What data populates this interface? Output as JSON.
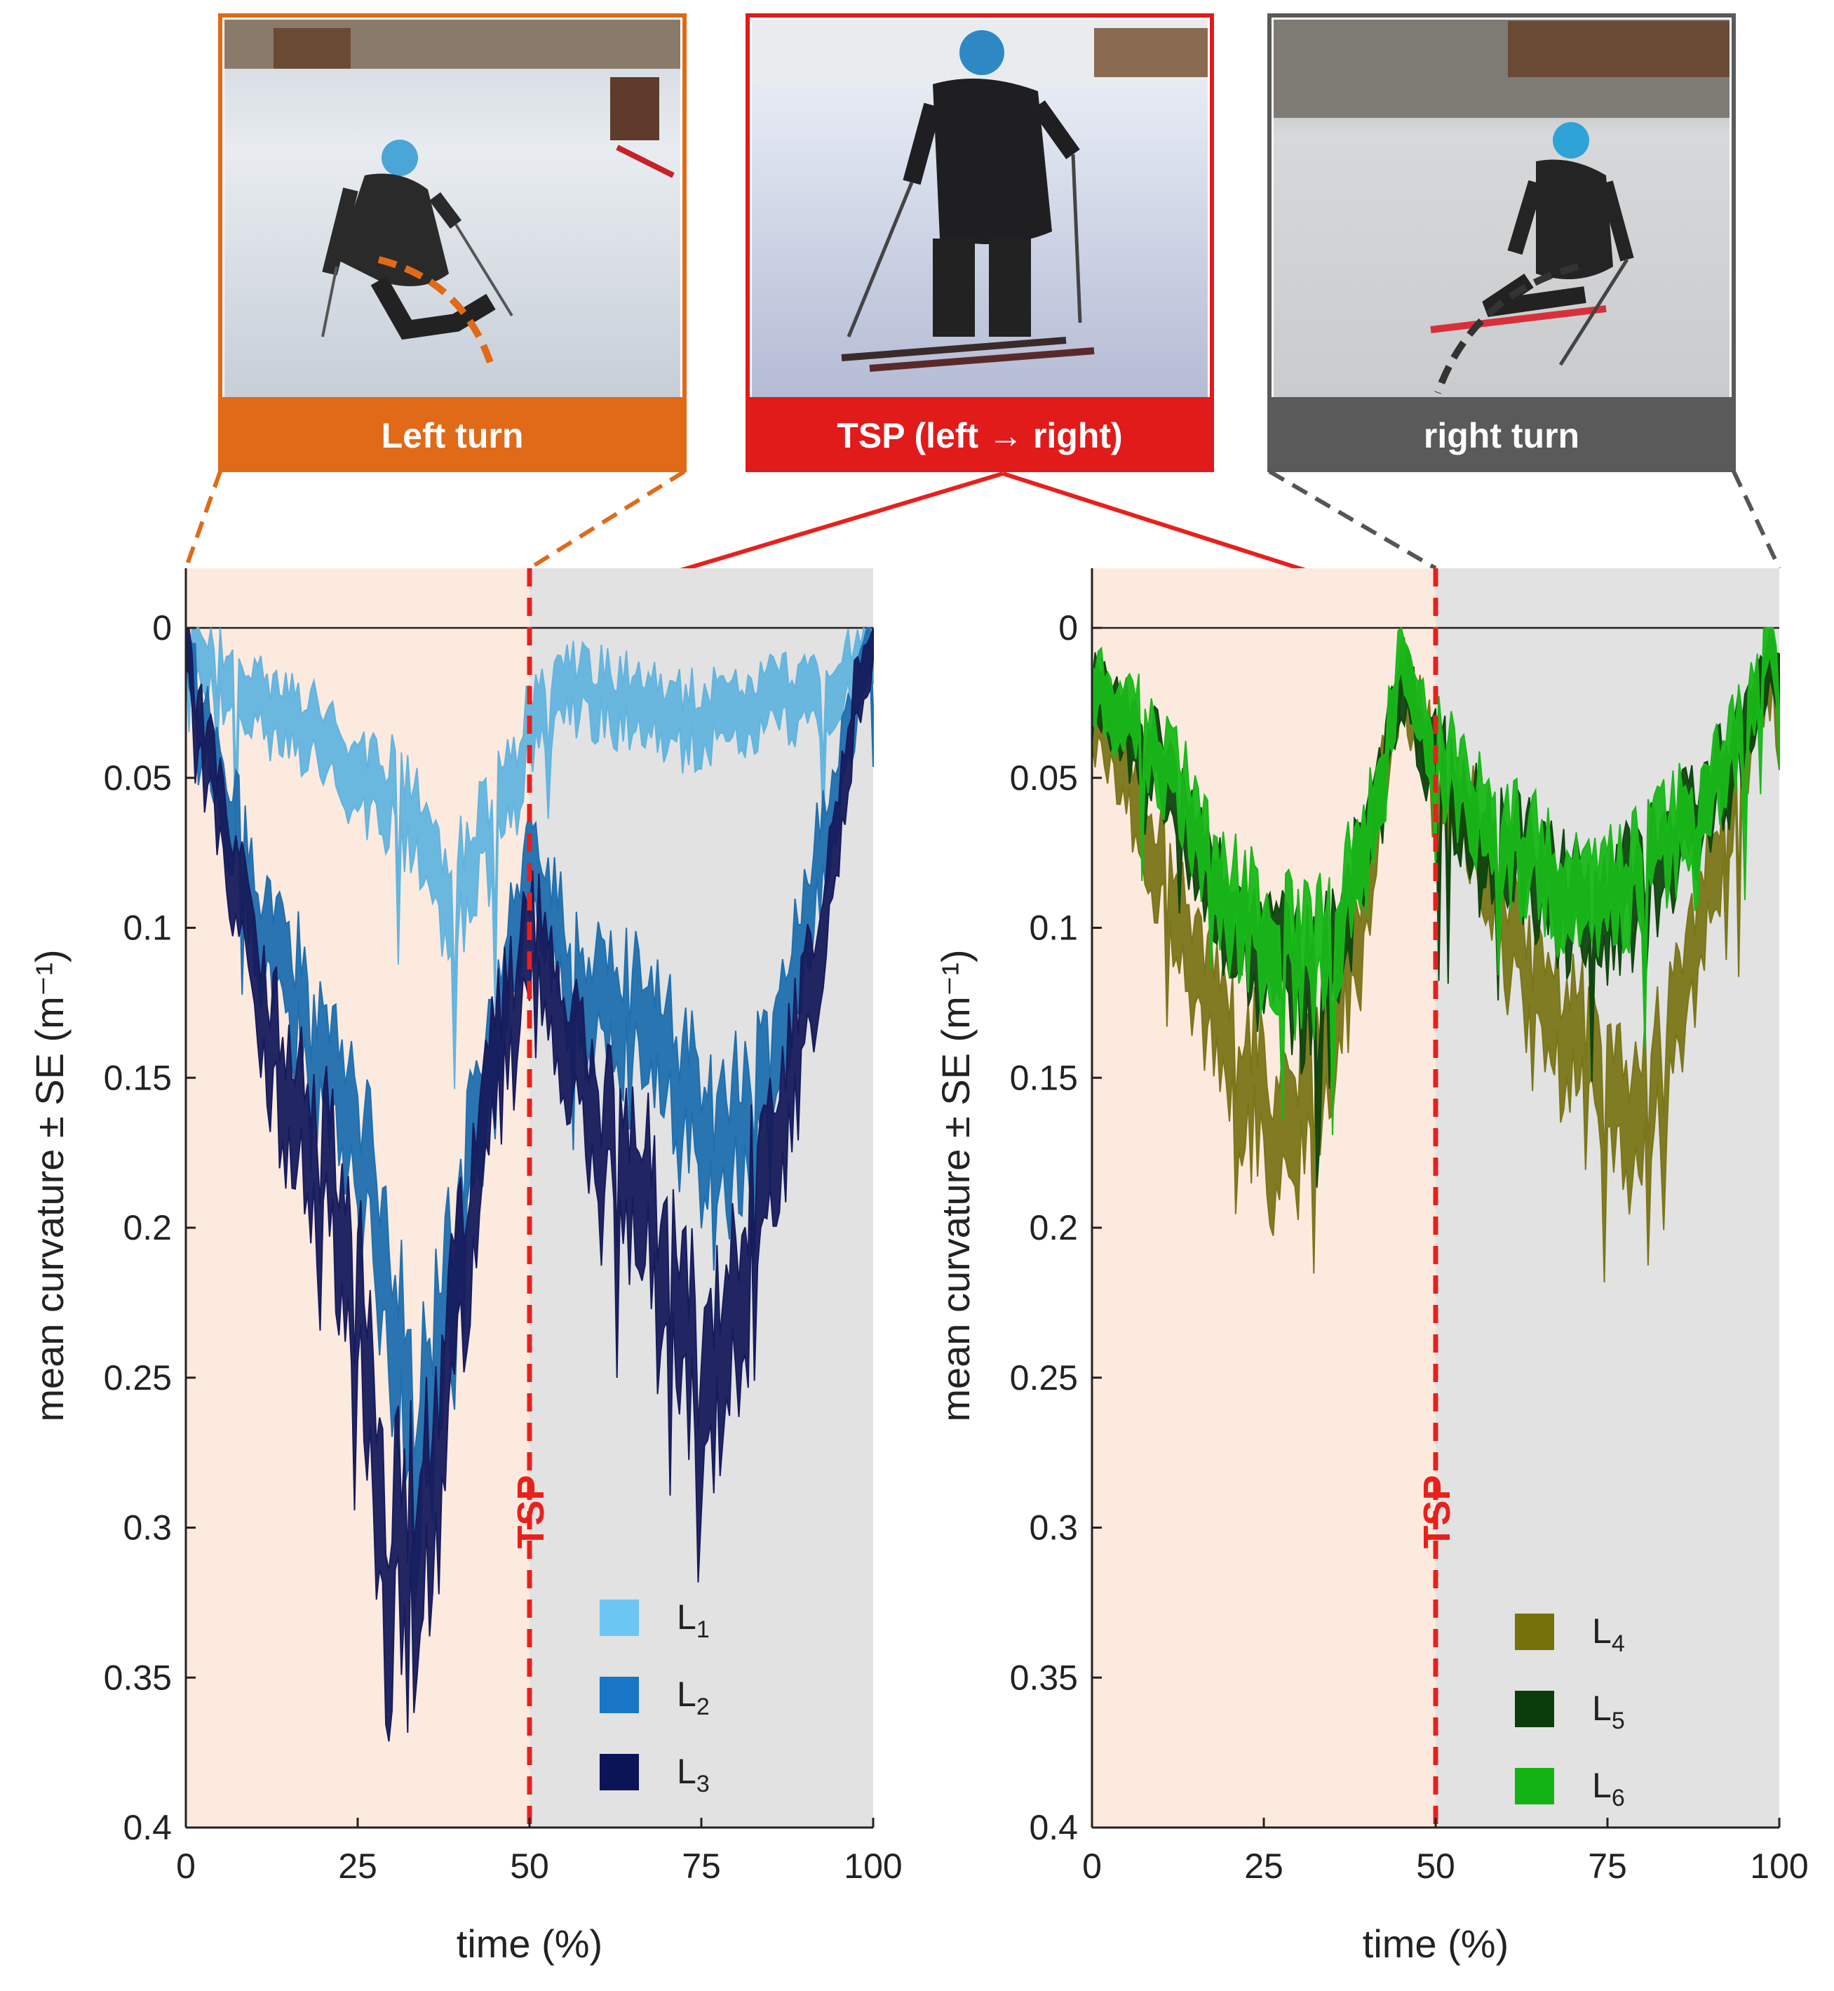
{
  "panels": [
    {
      "caption": "Left turn",
      "border": "#e06a18",
      "bar": "#e06a18"
    },
    {
      "caption": "TSP (left → right)",
      "border": "#e11a1a",
      "bar": "#e11a1a"
    },
    {
      "caption": "right turn",
      "border": "#5a5a5a",
      "bar": "#5a5a5a"
    }
  ],
  "colors": {
    "left_phase_bg": "#fdeadf",
    "right_phase_bg": "#e2e2e2",
    "tsp": "#e8201c",
    "connector_left": "#e06a18",
    "connector_right": "#555555"
  },
  "icons": [
    "skier-photo-left-turn",
    "skier-photo-tsp",
    "skier-photo-right-turn"
  ],
  "chart_data": [
    {
      "type": "area",
      "xlabel": "time (%)",
      "ylabel": "mean curvature ± SE (m⁻¹)",
      "xlim": [
        0,
        100
      ],
      "ylim": [
        0,
        0.4
      ],
      "y_inverted": true,
      "xticks": [
        "0",
        "25",
        "50",
        "75",
        "100"
      ],
      "yticks": [
        "0",
        "0.05",
        "0.1",
        "0.15",
        "0.2",
        "0.25",
        "0.3",
        "0.35",
        "0.4"
      ],
      "tsp_x": 50,
      "tsp_label": "TSP",
      "legend_position": "bottom-right",
      "series": [
        {
          "name": "L",
          "sub": "1",
          "color": "#6cc6f4",
          "band_color": "#62b4de",
          "knots": [
            [
              0,
              0.003
            ],
            [
              3,
              0.01
            ],
            [
              6,
              0.018
            ],
            [
              10,
              0.025
            ],
            [
              15,
              0.03
            ],
            [
              20,
              0.038
            ],
            [
              25,
              0.047
            ],
            [
              30,
              0.056
            ],
            [
              33,
              0.065
            ],
            [
              36,
              0.075
            ],
            [
              38,
              0.09
            ],
            [
              40,
              0.085
            ],
            [
              44,
              0.07
            ],
            [
              48,
              0.05
            ],
            [
              50,
              0.028
            ],
            [
              53,
              0.024
            ],
            [
              56,
              0.02
            ],
            [
              60,
              0.022
            ],
            [
              65,
              0.025
            ],
            [
              70,
              0.03
            ],
            [
              75,
              0.03
            ],
            [
              80,
              0.03
            ],
            [
              85,
              0.025
            ],
            [
              90,
              0.022
            ],
            [
              95,
              0.018
            ],
            [
              98,
              0.012
            ],
            [
              100,
              0.006
            ]
          ]
        },
        {
          "name": "L",
          "sub": "2",
          "color": "#1976c6",
          "band_color": "#1f6fae",
          "knots": [
            [
              0,
              0.003
            ],
            [
              2,
              0.025
            ],
            [
              4,
              0.045
            ],
            [
              6,
              0.06
            ],
            [
              8,
              0.07
            ],
            [
              10,
              0.09
            ],
            [
              12,
              0.11
            ],
            [
              15,
              0.12
            ],
            [
              18,
              0.13
            ],
            [
              20,
              0.145
            ],
            [
              23,
              0.16
            ],
            [
              26,
              0.18
            ],
            [
              29,
              0.215
            ],
            [
              31,
              0.245
            ],
            [
              33,
              0.27
            ],
            [
              35,
              0.26
            ],
            [
              38,
              0.23
            ],
            [
              41,
              0.19
            ],
            [
              44,
              0.15
            ],
            [
              47,
              0.11
            ],
            [
              50,
              0.08
            ],
            [
              52,
              0.09
            ],
            [
              55,
              0.11
            ],
            [
              58,
              0.12
            ],
            [
              62,
              0.125
            ],
            [
              66,
              0.13
            ],
            [
              70,
              0.145
            ],
            [
              73,
              0.16
            ],
            [
              76,
              0.175
            ],
            [
              79,
              0.175
            ],
            [
              82,
              0.16
            ],
            [
              85,
              0.14
            ],
            [
              88,
              0.12
            ],
            [
              91,
              0.09
            ],
            [
              94,
              0.06
            ],
            [
              97,
              0.03
            ],
            [
              100,
              0.003
            ]
          ]
        },
        {
          "name": "L",
          "sub": "3",
          "color": "#0c1458",
          "band_color": "#161b5c",
          "knots": [
            [
              0,
              0.003
            ],
            [
              2,
              0.03
            ],
            [
              4,
              0.05
            ],
            [
              6,
              0.07
            ],
            [
              8,
              0.095
            ],
            [
              10,
              0.12
            ],
            [
              12,
              0.14
            ],
            [
              15,
              0.155
            ],
            [
              18,
              0.17
            ],
            [
              20,
              0.18
            ],
            [
              23,
              0.2
            ],
            [
              26,
              0.23
            ],
            [
              28,
              0.28
            ],
            [
              30,
              0.31
            ],
            [
              32,
              0.32
            ],
            [
              34,
              0.3
            ],
            [
              36,
              0.285
            ],
            [
              39,
              0.24
            ],
            [
              42,
              0.19
            ],
            [
              45,
              0.15
            ],
            [
              48,
              0.12
            ],
            [
              50,
              0.1
            ],
            [
              52,
              0.11
            ],
            [
              55,
              0.13
            ],
            [
              58,
              0.15
            ],
            [
              62,
              0.17
            ],
            [
              66,
              0.185
            ],
            [
              70,
              0.21
            ],
            [
              73,
              0.24
            ],
            [
              76,
              0.25
            ],
            [
              79,
              0.24
            ],
            [
              82,
              0.2
            ],
            [
              85,
              0.175
            ],
            [
              88,
              0.15
            ],
            [
              91,
              0.12
            ],
            [
              94,
              0.08
            ],
            [
              97,
              0.03
            ],
            [
              100,
              0.003
            ]
          ]
        }
      ]
    },
    {
      "type": "area",
      "xlabel": "time (%)",
      "ylabel": "mean curvature ± SE (m⁻¹)",
      "xlim": [
        0,
        100
      ],
      "ylim": [
        0,
        0.4
      ],
      "y_inverted": true,
      "xticks": [
        "0",
        "25",
        "50",
        "75",
        "100"
      ],
      "yticks": [
        "0",
        "0.05",
        "0.1",
        "0.15",
        "0.2",
        "0.25",
        "0.3",
        "0.35",
        "0.4"
      ],
      "tsp_x": 50,
      "tsp_label": "TSP",
      "legend_position": "bottom-right",
      "series": [
        {
          "name": "L",
          "sub": "4",
          "color": "#75720a",
          "band_color": "#7a7618",
          "knots": [
            [
              0,
              0.03
            ],
            [
              3,
              0.04
            ],
            [
              6,
              0.055
            ],
            [
              9,
              0.075
            ],
            [
              12,
              0.09
            ],
            [
              15,
              0.11
            ],
            [
              18,
              0.13
            ],
            [
              21,
              0.145
            ],
            [
              24,
              0.155
            ],
            [
              27,
              0.17
            ],
            [
              30,
              0.165
            ],
            [
              33,
              0.15
            ],
            [
              36,
              0.12
            ],
            [
              39,
              0.1
            ],
            [
              42,
              0.06
            ],
            [
              45,
              0.015
            ],
            [
              47,
              0.03
            ],
            [
              50,
              0.045
            ],
            [
              53,
              0.055
            ],
            [
              56,
              0.07
            ],
            [
              60,
              0.1
            ],
            [
              64,
              0.125
            ],
            [
              68,
              0.135
            ],
            [
              72,
              0.145
            ],
            [
              75,
              0.16
            ],
            [
              78,
              0.165
            ],
            [
              82,
              0.15
            ],
            [
              86,
              0.12
            ],
            [
              90,
              0.085
            ],
            [
              94,
              0.05
            ],
            [
              97,
              0.02
            ],
            [
              99,
              0.015
            ],
            [
              100,
              0.03
            ]
          ]
        },
        {
          "name": "L",
          "sub": "5",
          "color": "#0b3d0b",
          "band_color": "#0e450e",
          "knots": [
            [
              0,
              0.02
            ],
            [
              3,
              0.028
            ],
            [
              6,
              0.035
            ],
            [
              9,
              0.045
            ],
            [
              12,
              0.055
            ],
            [
              15,
              0.07
            ],
            [
              18,
              0.09
            ],
            [
              21,
              0.1
            ],
            [
              24,
              0.105
            ],
            [
              27,
              0.11
            ],
            [
              30,
              0.12
            ],
            [
              33,
              0.115
            ],
            [
              36,
              0.1
            ],
            [
              39,
              0.085
            ],
            [
              42,
              0.06
            ],
            [
              45,
              0.015
            ],
            [
              47,
              0.03
            ],
            [
              50,
              0.045
            ],
            [
              53,
              0.055
            ],
            [
              56,
              0.065
            ],
            [
              60,
              0.075
            ],
            [
              64,
              0.08
            ],
            [
              68,
              0.09
            ],
            [
              72,
              0.095
            ],
            [
              75,
              0.095
            ],
            [
              78,
              0.09
            ],
            [
              82,
              0.08
            ],
            [
              86,
              0.07
            ],
            [
              90,
              0.055
            ],
            [
              94,
              0.04
            ],
            [
              97,
              0.02
            ],
            [
              99,
              0.005
            ],
            [
              100,
              0.025
            ]
          ]
        },
        {
          "name": "L",
          "sub": "6",
          "color": "#12b312",
          "band_color": "#18b818",
          "knots": [
            [
              0,
              0.018
            ],
            [
              3,
              0.025
            ],
            [
              6,
              0.03
            ],
            [
              9,
              0.04
            ],
            [
              12,
              0.05
            ],
            [
              15,
              0.065
            ],
            [
              18,
              0.085
            ],
            [
              21,
              0.095
            ],
            [
              24,
              0.1
            ],
            [
              27,
              0.105
            ],
            [
              30,
              0.11
            ],
            [
              33,
              0.11
            ],
            [
              36,
              0.095
            ],
            [
              39,
              0.08
            ],
            [
              42,
              0.055
            ],
            [
              45,
              0.01
            ],
            [
              47,
              0.025
            ],
            [
              50,
              0.04
            ],
            [
              53,
              0.05
            ],
            [
              56,
              0.06
            ],
            [
              60,
              0.07
            ],
            [
              64,
              0.075
            ],
            [
              68,
              0.085
            ],
            [
              72,
              0.09
            ],
            [
              75,
              0.09
            ],
            [
              78,
              0.085
            ],
            [
              82,
              0.075
            ],
            [
              86,
              0.065
            ],
            [
              90,
              0.05
            ],
            [
              94,
              0.035
            ],
            [
              97,
              0.015
            ],
            [
              99,
              0.003
            ],
            [
              100,
              0.022
            ]
          ]
        }
      ]
    }
  ]
}
